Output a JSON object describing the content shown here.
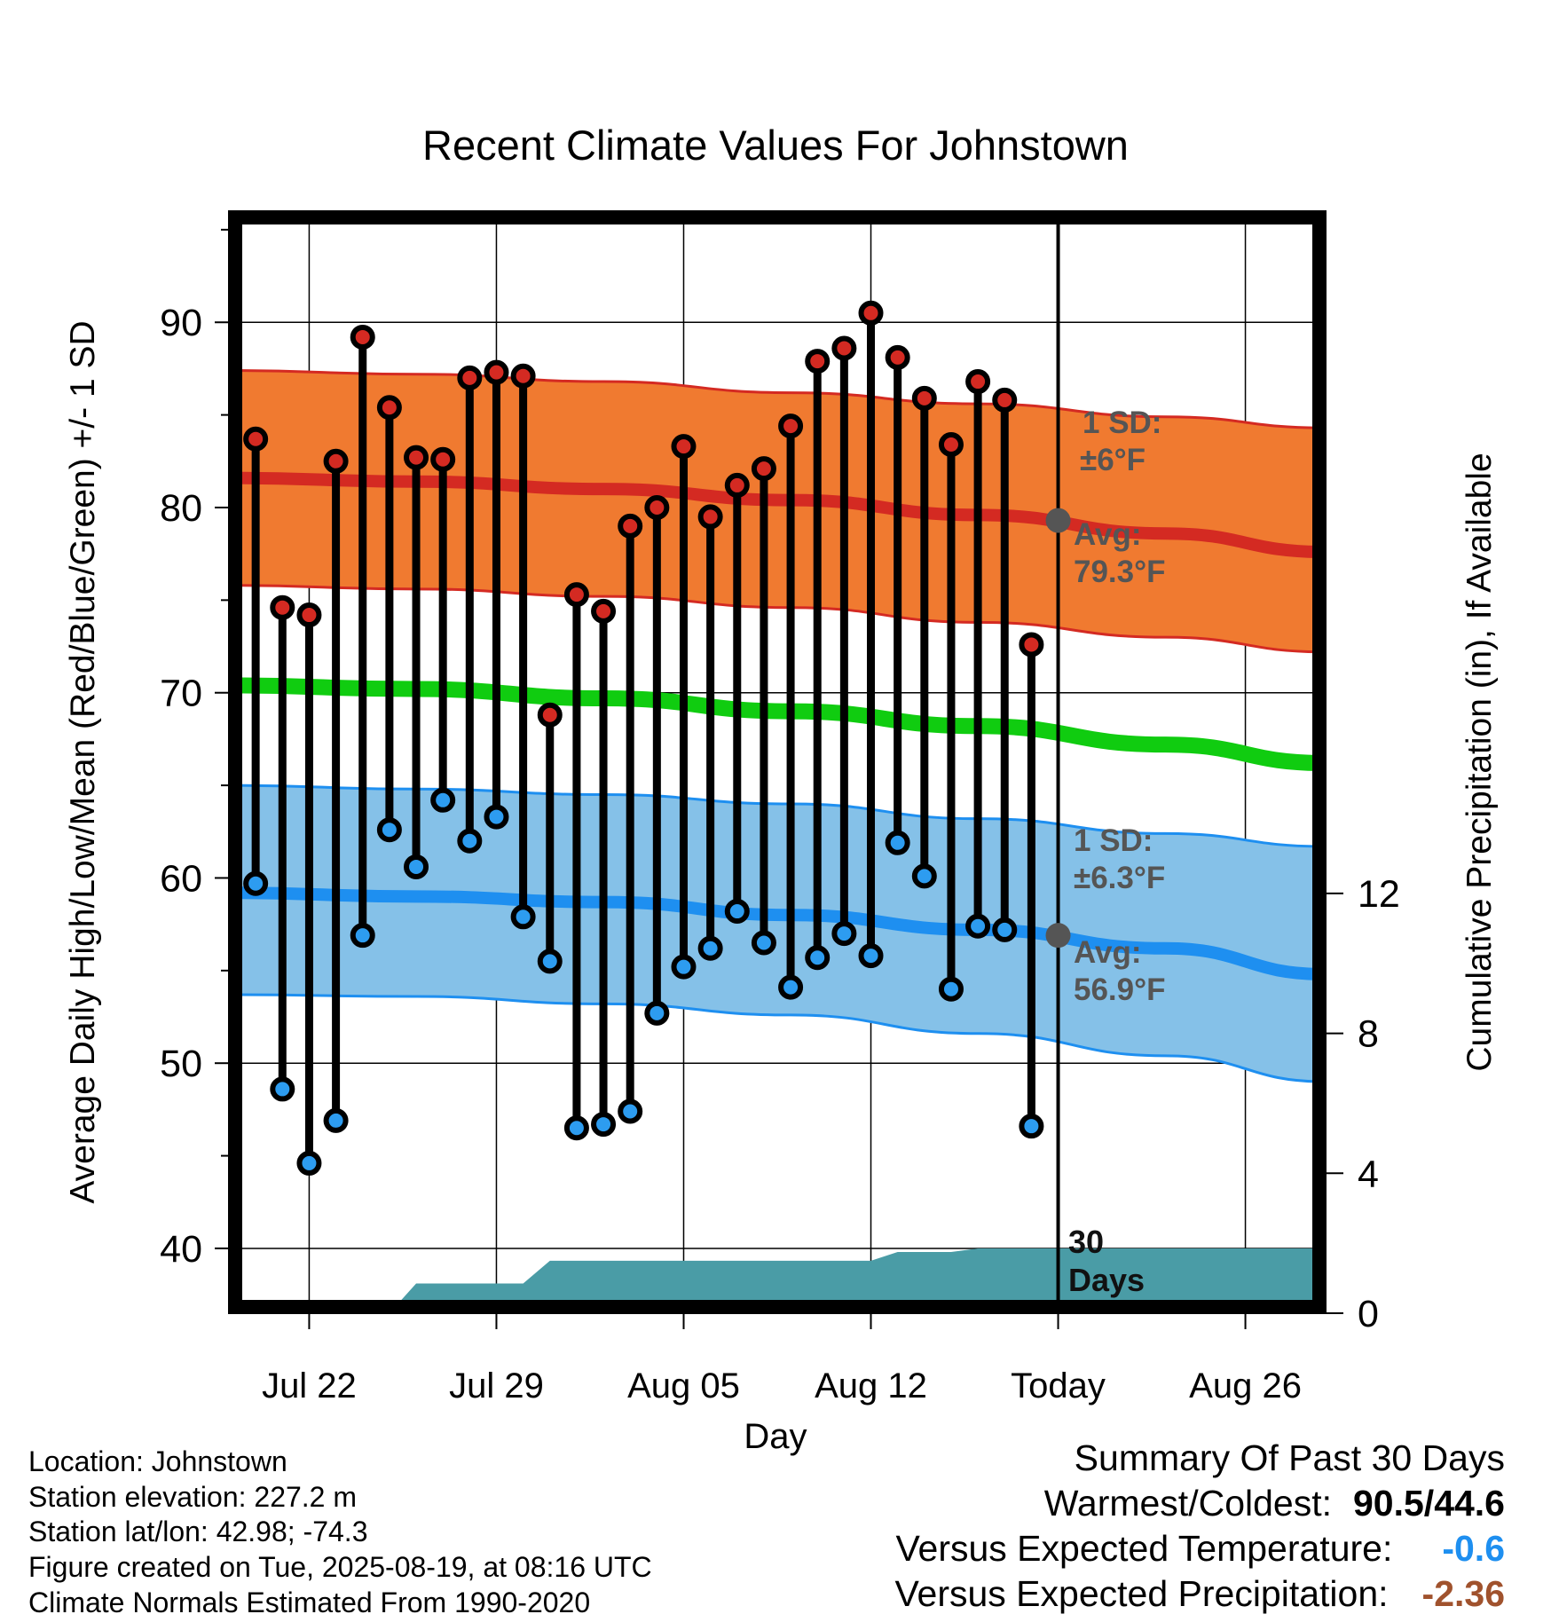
{
  "chart_data": {
    "type": "line",
    "title": "Recent Climate Values For Johnstown",
    "xlabel": "Day",
    "ylabel": "Average Daily High/Low/Mean (Red/Blue/Green) +/- 1 SD",
    "y2label": "Cumulative Precipitation (in), If Available",
    "ylim": [
      36.5,
      96
    ],
    "y2lim": [
      0,
      31.5
    ],
    "xlim": [
      "2025-07-19",
      "2025-08-29"
    ],
    "yticks": [
      40,
      50,
      60,
      70,
      80,
      90
    ],
    "y2ticks": [
      0,
      4,
      8,
      12
    ],
    "xtick_dates": [
      "2025-07-22",
      "2025-07-29",
      "2025-08-05",
      "2025-08-12",
      "2025-08-19",
      "2025-08-26"
    ],
    "xtick_labels": [
      "Jul 22",
      "Jul 29",
      "Aug 05",
      "Aug 12",
      "Today",
      "Aug 26"
    ],
    "today": "2025-08-19",
    "grid": true,
    "colors": {
      "high_band": "#f07a30",
      "high_line": "#d42a22",
      "high_edge": "#d42a22",
      "low_band": "#85c1e8",
      "low_line": "#1e8ff0",
      "low_edge": "#1e8ff0",
      "mean_line": "#10cc10",
      "precip": "#4a9ca6",
      "high_marker": "#d42a22",
      "low_marker": "#2d9cf0",
      "avg_marker": "#555555",
      "annotation": "#555555"
    },
    "normal_dates": [
      "2025-07-19",
      "2025-07-26",
      "2025-08-02",
      "2025-08-09",
      "2025-08-16",
      "2025-08-23",
      "2025-08-29"
    ],
    "normal_high": [
      81.6,
      81.4,
      81.0,
      80.4,
      79.6,
      78.6,
      77.6
    ],
    "normal_high_upper": [
      87.4,
      87.2,
      86.8,
      86.2,
      85.6,
      84.9,
      84.3
    ],
    "normal_high_lower": [
      75.8,
      75.6,
      75.2,
      74.6,
      73.8,
      73.0,
      72.2
    ],
    "normal_mean": [
      70.4,
      70.2,
      69.7,
      69.0,
      68.2,
      67.2,
      66.2
    ],
    "normal_low": [
      59.2,
      59.0,
      58.7,
      58.0,
      57.2,
      56.2,
      54.8
    ],
    "normal_low_upper": [
      65.0,
      64.8,
      64.5,
      64.0,
      63.2,
      62.4,
      61.7
    ],
    "normal_low_lower": [
      53.7,
      53.6,
      53.2,
      52.6,
      51.6,
      50.4,
      49.0
    ],
    "obs_dates": [
      "2025-07-20",
      "2025-07-21",
      "2025-07-22",
      "2025-07-23",
      "2025-07-24",
      "2025-07-25",
      "2025-07-26",
      "2025-07-27",
      "2025-07-28",
      "2025-07-29",
      "2025-07-30",
      "2025-07-31",
      "2025-08-01",
      "2025-08-02",
      "2025-08-03",
      "2025-08-04",
      "2025-08-05",
      "2025-08-06",
      "2025-08-07",
      "2025-08-08",
      "2025-08-09",
      "2025-08-10",
      "2025-08-11",
      "2025-08-12",
      "2025-08-13",
      "2025-08-14",
      "2025-08-15",
      "2025-08-16",
      "2025-08-17",
      "2025-08-18"
    ],
    "obs_high": [
      83.7,
      74.6,
      74.2,
      82.5,
      89.2,
      85.4,
      82.7,
      82.6,
      87.0,
      87.3,
      87.1,
      68.8,
      75.3,
      74.4,
      79.0,
      80.0,
      83.3,
      79.5,
      81.2,
      82.1,
      84.4,
      87.9,
      88.6,
      90.5,
      88.1,
      85.9,
      83.4,
      86.8,
      85.8,
      72.6
    ],
    "obs_low": [
      59.7,
      48.6,
      44.6,
      46.9,
      56.9,
      62.6,
      60.6,
      64.2,
      62.0,
      63.3,
      57.9,
      55.5,
      46.5,
      46.7,
      47.4,
      52.7,
      55.2,
      56.2,
      58.2,
      56.5,
      54.1,
      55.7,
      57.0,
      55.8,
      61.9,
      60.1,
      54.0,
      57.4,
      57.2,
      46.6
    ],
    "precip_dates": [
      "2025-07-19",
      "2025-07-25",
      "2025-07-26",
      "2025-07-30",
      "2025-07-31",
      "2025-08-12",
      "2025-08-13",
      "2025-08-15",
      "2025-08-16",
      "2025-08-29"
    ],
    "precip_cum": [
      0,
      0,
      0.85,
      0.85,
      1.5,
      1.5,
      1.75,
      1.75,
      1.85,
      1.85
    ],
    "annotations": {
      "high_sd_label": "1 SD:",
      "high_sd_value": "±6°F",
      "high_avg_label": "Avg:",
      "high_avg_value": "79.3°F",
      "high_avg": 79.3,
      "low_sd_label": "1 SD:",
      "low_sd_value": "±6.3°F",
      "low_avg_label": "Avg:",
      "low_avg_value": "56.9°F",
      "low_avg": 56.9,
      "period_number": "30",
      "period_unit": "Days"
    }
  },
  "station_info": {
    "location": "Location: Johnstown",
    "elevation": "Station elevation: 227.2 m",
    "latlon": "Station lat/lon: 42.98; -74.3",
    "created": "Figure created on Tue, 2025-08-19, at 08:16 UTC",
    "normals": "Climate Normals Estimated From 1990-2020"
  },
  "summary": {
    "heading": "Summary Of Past 30 Days",
    "warmest_coldest_label": "Warmest/Coldest:",
    "warmest_coldest_value": "90.5/44.6",
    "temp_label": "Versus Expected Temperature:",
    "temp_value": "-0.6",
    "temp_color": "#1e8ff0",
    "precip_label": "Versus Expected Precipitation:",
    "precip_value": "-2.36",
    "precip_color": "#a0522d"
  }
}
